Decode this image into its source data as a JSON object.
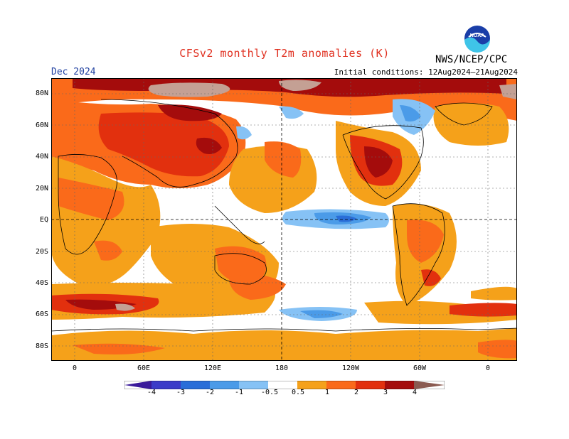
{
  "header": {
    "title": "CFSv2 monthly T2m anomalies (K)",
    "agency": "NWS/NCEP/CPC",
    "month": "Dec 2024",
    "initial_conditions": "Initial conditions: 12Aug2024–21Aug2024",
    "logo_text": "NOAA"
  },
  "map": {
    "lat_labels": [
      "80N",
      "60N",
      "40N",
      "20N",
      "EQ",
      "20S",
      "40S",
      "60S",
      "80S"
    ],
    "lon_labels": [
      "0",
      "60E",
      "120E",
      "180",
      "120W",
      "60W",
      "0"
    ],
    "colors": {
      "neg4": "#3a1a9a",
      "neg3": "#3c3cc8",
      "neg2": "#2a6ed8",
      "neg1": "#4b9be8",
      "neg05": "#86c2f5",
      "pos05": "#f5a11a",
      "pos1": "#fa6a1a",
      "pos2": "#e2300e",
      "pos3": "#a40c0c",
      "pos4": "#c4a094",
      "pos5": "#8a5a50",
      "neutral": "#ffffff"
    }
  },
  "colorbar": {
    "labels": [
      "-4",
      "-3",
      "-2",
      "-1",
      "-0.5",
      "0.5",
      "1",
      "2",
      "3",
      "4"
    ]
  }
}
